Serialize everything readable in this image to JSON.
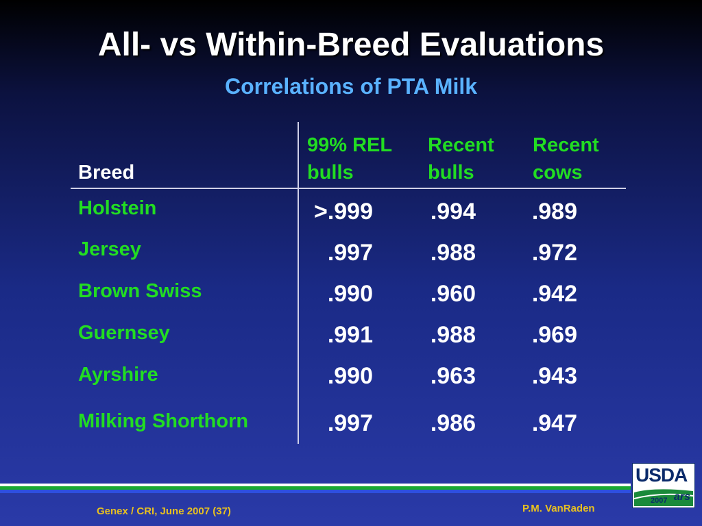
{
  "title": "All- vs Within-Breed Evaluations",
  "subtitle": "Correlations of PTA Milk",
  "table": {
    "headers": {
      "breed": "Breed",
      "col1_line1": "99% REL",
      "col1_line2": "bulls",
      "col2_line1": "Recent",
      "col2_line2": "bulls",
      "col3_line1": "Recent",
      "col3_line2": "cows"
    },
    "rows": [
      {
        "breed": "Holstein",
        "v1": ">.999",
        "v2": ".994",
        "v3": ".989"
      },
      {
        "breed": "Jersey",
        "v1": ".997",
        "v2": ".988",
        "v3": ".972"
      },
      {
        "breed": "Brown Swiss",
        "v1": ".990",
        "v2": ".960",
        "v3": ".942"
      },
      {
        "breed": "Guernsey",
        "v1": ".991",
        "v2": ".988",
        "v3": ".969"
      },
      {
        "breed": "Ayrshire",
        "v1": ".990",
        "v2": ".963",
        "v3": ".943"
      },
      {
        "breed": "Milking Shorthorn",
        "v1": ".997",
        "v2": ".986",
        "v3": ".947"
      }
    ]
  },
  "footer": {
    "left": "Genex / CRI, June 2007 (37)",
    "right": "P.M. VanRaden"
  },
  "logo": {
    "text": "USDA",
    "year": "2007",
    "mark": "ars"
  },
  "colors": {
    "accent_green": "#22dd22",
    "subtitle_blue": "#5ab2ff",
    "footer_gold": "#e8c020"
  }
}
